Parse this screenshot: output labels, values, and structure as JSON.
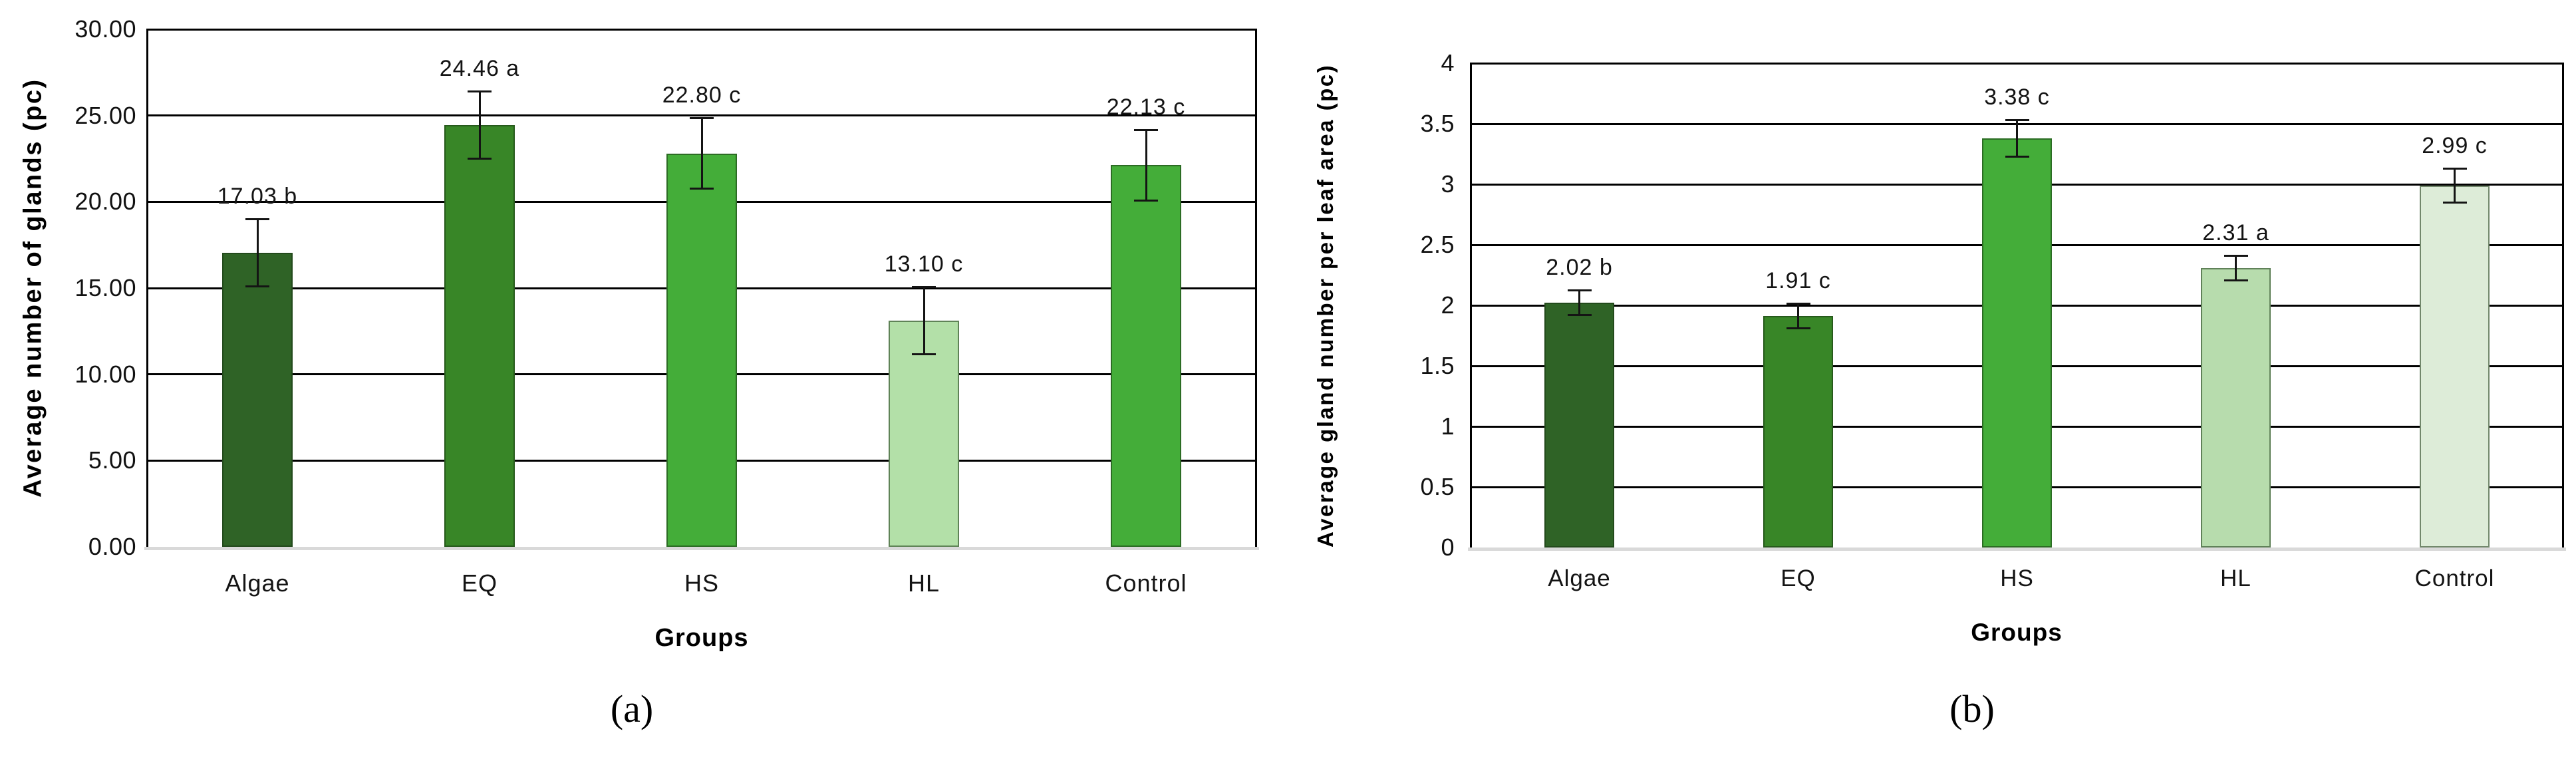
{
  "page": {
    "background": "#ffffff"
  },
  "chart_data": [
    {
      "type": "bar",
      "panel": "a",
      "caption": "(a)",
      "title": "",
      "xlabel": "Groups",
      "ylabel": "Average number of glands (pc)",
      "categories": [
        "Algae",
        "EQ",
        "HS",
        "HL",
        "Control"
      ],
      "values": [
        17.03,
        24.46,
        22.8,
        13.1,
        22.13
      ],
      "errors": [
        2.0,
        2.0,
        2.1,
        2.0,
        2.1
      ],
      "data_labels": [
        "17.03 b",
        "24.46 a",
        "22.80 c",
        "13.10 c",
        "22.13 c"
      ],
      "bar_colors": [
        "#2F6326",
        "#388627",
        "#44AD39",
        "#B3E0A8",
        "#44AD39"
      ],
      "ylim": [
        0,
        30
      ],
      "ytick_step": 5,
      "ytick_labels": [
        "0.00",
        "5.00",
        "10.00",
        "15.00",
        "20.00",
        "25.00",
        "30.00"
      ],
      "grid": "horizontal-black",
      "legend": "none",
      "error_bar_color": "#141414"
    },
    {
      "type": "bar",
      "panel": "b",
      "caption": "(b)",
      "title": "",
      "xlabel": "Groups",
      "ylabel": "Average gland number per leaf area (pc)",
      "categories": [
        "Algae",
        "EQ",
        "HS",
        "HL",
        "Control"
      ],
      "values": [
        2.02,
        1.91,
        3.38,
        2.31,
        2.99
      ],
      "errors": [
        0.11,
        0.11,
        0.16,
        0.11,
        0.15
      ],
      "data_labels": [
        "2.02 b",
        "1.91 c",
        "3.38 c",
        "2.31 a",
        "2.99 c"
      ],
      "bar_colors": [
        "#2F6326",
        "#388627",
        "#44AD39",
        "#B7DCAD",
        "#DDECD8"
      ],
      "ylim": [
        0,
        4
      ],
      "ytick_step": 0.5,
      "ytick_labels": [
        "0",
        "0.5",
        "1",
        "1.5",
        "2",
        "2.5",
        "3",
        "3.5",
        "4"
      ],
      "grid": "horizontal-black",
      "legend": "none",
      "error_bar_color": "#141414"
    }
  ]
}
